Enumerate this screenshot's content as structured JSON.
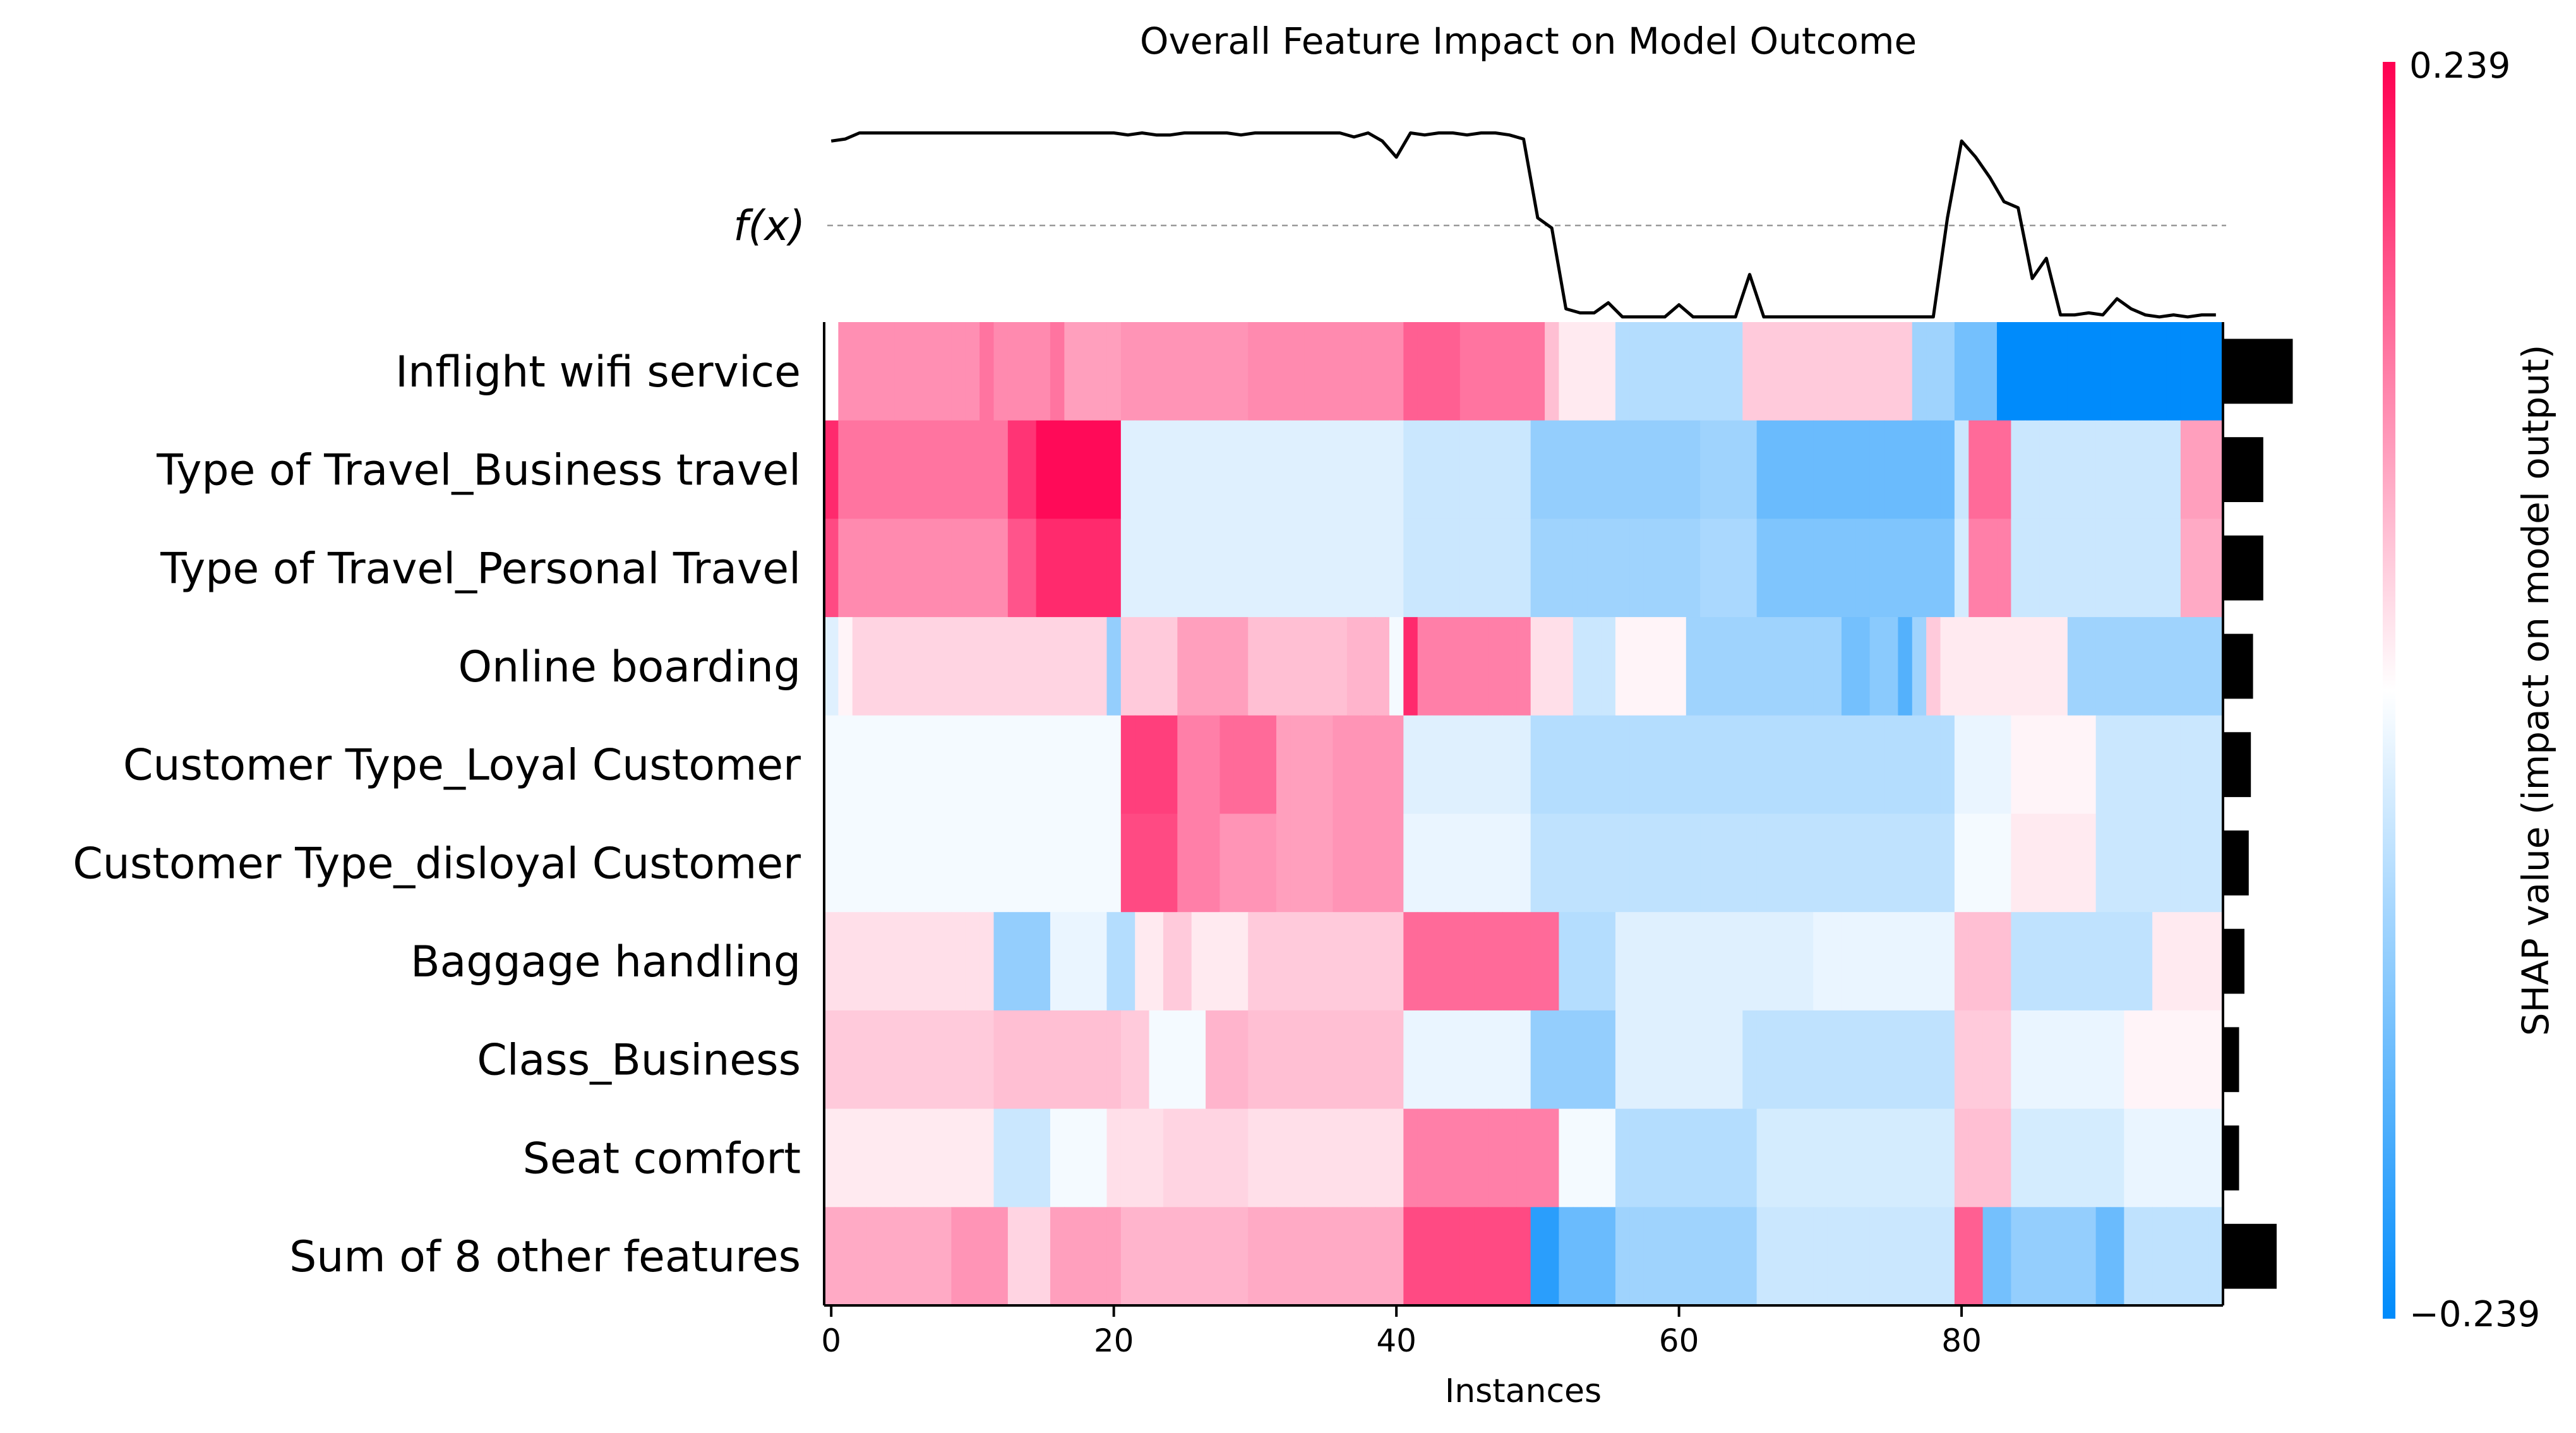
{
  "chart_data": {
    "type": "heatmap",
    "title": "Overall Feature Impact on Model Outcome",
    "xlabel": "Instances",
    "fx_label": "f(x)",
    "colorbar_label": "SHAP value (impact on model output)",
    "colorbar_max_label": "0.239",
    "colorbar_min_label": "−0.239",
    "vmin": -0.239,
    "vmax": 0.239,
    "n_instances": 99,
    "x_ticks": [
      0,
      20,
      40,
      60,
      80
    ],
    "x_tick_labels": [
      "0",
      "20",
      "40",
      "60",
      "80"
    ],
    "features": [
      "Inflight wifi service",
      "Type of Travel_Business travel",
      "Type of Travel_Personal Travel",
      "Online boarding",
      "Customer Type_Loyal Customer",
      "Customer Type_disloyal Customer",
      "Baggage handling",
      "Class_Business",
      "Seat comfort",
      "Sum of 8 other features"
    ],
    "mean_abs_importance": [
      0.13,
      0.075,
      0.075,
      0.056,
      0.052,
      0.048,
      0.04,
      0.03,
      0.03,
      0.1
    ],
    "fx_values": [
      0.88,
      0.89,
      0.92,
      0.92,
      0.92,
      0.92,
      0.92,
      0.92,
      0.92,
      0.92,
      0.92,
      0.92,
      0.92,
      0.92,
      0.92,
      0.92,
      0.92,
      0.92,
      0.92,
      0.92,
      0.92,
      0.91,
      0.92,
      0.91,
      0.91,
      0.92,
      0.92,
      0.92,
      0.92,
      0.91,
      0.92,
      0.92,
      0.92,
      0.92,
      0.92,
      0.92,
      0.92,
      0.9,
      0.92,
      0.88,
      0.8,
      0.92,
      0.91,
      0.92,
      0.92,
      0.91,
      0.92,
      0.92,
      0.91,
      0.89,
      0.5,
      0.45,
      0.05,
      0.03,
      0.03,
      0.08,
      0.01,
      0.01,
      0.01,
      0.01,
      0.07,
      0.01,
      0.01,
      0.01,
      0.01,
      0.22,
      0.01,
      0.01,
      0.01,
      0.01,
      0.01,
      0.01,
      0.01,
      0.01,
      0.01,
      0.01,
      0.01,
      0.01,
      0.01,
      0.5,
      0.88,
      0.8,
      0.7,
      0.58,
      0.55,
      0.2,
      0.3,
      0.02,
      0.02,
      0.03,
      0.02,
      0.1,
      0.05,
      0.02,
      0.01,
      0.02,
      0.01,
      0.02,
      0.02
    ],
    "fx_baseline": 0.5,
    "segments": [
      [
        [
          0,
          0,
          -0.045
        ],
        [
          1,
          11,
          0.105
        ],
        [
          11,
          12,
          0.13
        ],
        [
          12,
          16,
          0.11
        ],
        [
          16,
          17,
          0.13
        ],
        [
          17,
          21,
          0.09
        ],
        [
          21,
          30,
          0.1
        ],
        [
          30,
          41,
          0.11
        ],
        [
          41,
          45,
          0.15
        ],
        [
          45,
          51,
          0.13
        ],
        [
          51,
          52,
          0.06
        ],
        [
          52,
          56,
          0.02
        ],
        [
          56,
          65,
          -0.07
        ],
        [
          65,
          77,
          0.05
        ],
        [
          77,
          80,
          -0.09
        ],
        [
          80,
          83,
          -0.13
        ],
        [
          83,
          99,
          -0.239
        ]
      ],
      [
        [
          0,
          1,
          0.2
        ],
        [
          1,
          13,
          0.13
        ],
        [
          13,
          15,
          0.19
        ],
        [
          15,
          21,
          0.23
        ],
        [
          21,
          41,
          -0.03
        ],
        [
          41,
          50,
          -0.05
        ],
        [
          50,
          62,
          -0.1
        ],
        [
          62,
          66,
          -0.09
        ],
        [
          66,
          80,
          -0.14
        ],
        [
          80,
          81,
          -0.05
        ],
        [
          81,
          84,
          0.14
        ],
        [
          84,
          96,
          -0.05
        ],
        [
          96,
          99,
          0.09
        ]
      ],
      [
        [
          0,
          1,
          0.17
        ],
        [
          1,
          13,
          0.11
        ],
        [
          13,
          15,
          0.16
        ],
        [
          15,
          21,
          0.2
        ],
        [
          21,
          41,
          -0.03
        ],
        [
          41,
          50,
          -0.05
        ],
        [
          50,
          62,
          -0.09
        ],
        [
          62,
          66,
          -0.08
        ],
        [
          66,
          80,
          -0.12
        ],
        [
          80,
          81,
          -0.04
        ],
        [
          81,
          84,
          0.12
        ],
        [
          84,
          96,
          -0.05
        ],
        [
          96,
          99,
          0.08
        ]
      ],
      [
        [
          0,
          1,
          -0.03
        ],
        [
          1,
          2,
          0.01
        ],
        [
          2,
          20,
          0.04
        ],
        [
          20,
          21,
          -0.1
        ],
        [
          21,
          25,
          0.05
        ],
        [
          25,
          30,
          0.09
        ],
        [
          30,
          37,
          0.06
        ],
        [
          37,
          40,
          0.07
        ],
        [
          40,
          41,
          -0.01
        ],
        [
          41,
          42,
          0.2
        ],
        [
          42,
          50,
          0.12
        ],
        [
          50,
          53,
          0.03
        ],
        [
          53,
          56,
          -0.05
        ],
        [
          56,
          61,
          0.01
        ],
        [
          61,
          72,
          -0.09
        ],
        [
          72,
          74,
          -0.13
        ],
        [
          74,
          76,
          -0.11
        ],
        [
          76,
          77,
          -0.16
        ],
        [
          77,
          78,
          -0.09
        ],
        [
          78,
          79,
          0.05
        ],
        [
          79,
          88,
          0.02
        ],
        [
          88,
          99,
          -0.09
        ]
      ],
      [
        [
          0,
          21,
          -0.01
        ],
        [
          21,
          25,
          0.18
        ],
        [
          25,
          28,
          0.12
        ],
        [
          28,
          32,
          0.14
        ],
        [
          32,
          36,
          0.09
        ],
        [
          36,
          41,
          0.1
        ],
        [
          41,
          50,
          -0.03
        ],
        [
          50,
          80,
          -0.07
        ],
        [
          80,
          84,
          -0.02
        ],
        [
          84,
          90,
          0.01
        ],
        [
          90,
          99,
          -0.05
        ]
      ],
      [
        [
          0,
          21,
          -0.01
        ],
        [
          21,
          25,
          0.17
        ],
        [
          25,
          28,
          0.12
        ],
        [
          28,
          32,
          0.1
        ],
        [
          32,
          36,
          0.09
        ],
        [
          36,
          41,
          0.1
        ],
        [
          41,
          50,
          -0.02
        ],
        [
          50,
          80,
          -0.06
        ],
        [
          80,
          84,
          -0.01
        ],
        [
          84,
          90,
          0.02
        ],
        [
          90,
          99,
          -0.05
        ]
      ],
      [
        [
          0,
          12,
          0.03
        ],
        [
          12,
          16,
          -0.1
        ],
        [
          16,
          20,
          -0.02
        ],
        [
          20,
          22,
          -0.07
        ],
        [
          22,
          24,
          0.02
        ],
        [
          24,
          26,
          0.05
        ],
        [
          26,
          30,
          0.02
        ],
        [
          30,
          41,
          0.05
        ],
        [
          41,
          52,
          0.14
        ],
        [
          52,
          56,
          -0.07
        ],
        [
          56,
          70,
          -0.03
        ],
        [
          70,
          80,
          -0.02
        ],
        [
          80,
          84,
          0.06
        ],
        [
          84,
          94,
          -0.06
        ],
        [
          94,
          99,
          0.02
        ]
      ],
      [
        [
          0,
          12,
          0.05
        ],
        [
          12,
          21,
          0.06
        ],
        [
          21,
          23,
          0.05
        ],
        [
          23,
          27,
          -0.01
        ],
        [
          27,
          30,
          0.07
        ],
        [
          30,
          41,
          0.06
        ],
        [
          41,
          50,
          -0.02
        ],
        [
          50,
          56,
          -0.1
        ],
        [
          56,
          65,
          -0.03
        ],
        [
          65,
          80,
          -0.06
        ],
        [
          80,
          84,
          0.05
        ],
        [
          84,
          92,
          -0.02
        ],
        [
          92,
          99,
          0.01
        ]
      ],
      [
        [
          0,
          12,
          0.02
        ],
        [
          12,
          16,
          -0.05
        ],
        [
          16,
          20,
          -0.01
        ],
        [
          20,
          24,
          0.03
        ],
        [
          24,
          30,
          0.04
        ],
        [
          30,
          41,
          0.03
        ],
        [
          41,
          52,
          0.12
        ],
        [
          52,
          56,
          -0.01
        ],
        [
          56,
          66,
          -0.07
        ],
        [
          66,
          80,
          -0.04
        ],
        [
          80,
          84,
          0.06
        ],
        [
          84,
          92,
          -0.04
        ],
        [
          92,
          99,
          -0.02
        ]
      ],
      [
        [
          0,
          9,
          0.08
        ],
        [
          9,
          13,
          0.1
        ],
        [
          13,
          16,
          0.04
        ],
        [
          16,
          21,
          0.09
        ],
        [
          21,
          30,
          0.07
        ],
        [
          30,
          41,
          0.08
        ],
        [
          41,
          50,
          0.17
        ],
        [
          50,
          52,
          -0.2
        ],
        [
          52,
          56,
          -0.14
        ],
        [
          56,
          66,
          -0.09
        ],
        [
          66,
          80,
          -0.05
        ],
        [
          80,
          82,
          0.15
        ],
        [
          82,
          84,
          -0.13
        ],
        [
          84,
          90,
          -0.1
        ],
        [
          90,
          92,
          -0.14
        ],
        [
          92,
          99,
          -0.06
        ]
      ]
    ]
  }
}
